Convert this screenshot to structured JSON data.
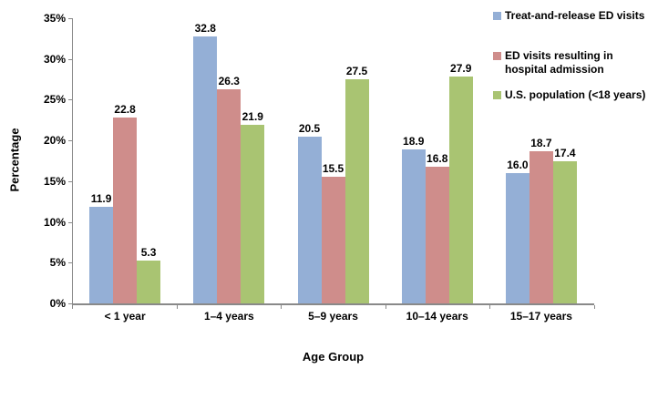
{
  "chart_data": {
    "type": "bar",
    "title": "",
    "categories": [
      "< 1 year",
      "1–4 years",
      "5–9 years",
      "10–14 years",
      "15–17 years"
    ],
    "series": [
      {
        "name": "Treat-and-release ED visits",
        "legend_lines": [
          "Treat-and-release ED visits"
        ],
        "color": "#94AFD6",
        "values": [
          11.9,
          32.8,
          20.5,
          18.9,
          16.0
        ]
      },
      {
        "name": "ED visits resulting in hospital admission",
        "legend_lines": [
          "ED visits resulting in",
          "hospital admission"
        ],
        "color": "#CF8D8B",
        "values": [
          22.8,
          26.3,
          15.5,
          16.8,
          18.7
        ]
      },
      {
        "name": "U.S. population (<18 years)",
        "legend_lines": [
          "U.S. population (<18 years)"
        ],
        "color": "#A9C472",
        "values": [
          5.3,
          21.9,
          27.5,
          27.9,
          17.4
        ]
      }
    ],
    "xlabel": "Age Group",
    "ylabel": "Percentage",
    "ylim": [
      0,
      35
    ],
    "yticks": [
      "0%",
      "5%",
      "10%",
      "15%",
      "20%",
      "25%",
      "30%",
      "35%"
    ],
    "grid": false,
    "legend_position": "top-right",
    "value_label_decimals": 1,
    "axis_color": "#898989",
    "text_color": "#000000"
  }
}
